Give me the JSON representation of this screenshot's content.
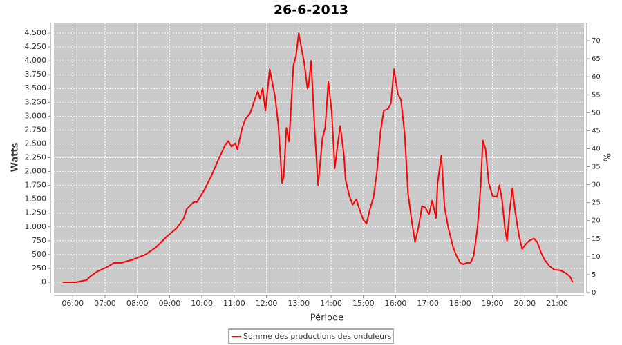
{
  "chart_data": {
    "type": "line",
    "title": "26-6-2013",
    "x_label": "Période",
    "y_label": "Watts",
    "y2_label": "%",
    "x": [
      "05:41",
      "06:06",
      "06:26",
      "06:32",
      "06:45",
      "07:04",
      "07:17",
      "07:30",
      "07:49",
      "08:15",
      "08:34",
      "08:53",
      "09:13",
      "09:26",
      "09:32",
      "09:45",
      "09:51",
      "10:04",
      "10:17",
      "10:30",
      "10:43",
      "10:49",
      "10:55",
      "11:02",
      "11:06",
      "11:15",
      "11:21",
      "11:30",
      "11:40",
      "11:44",
      "11:48",
      "11:53",
      "11:58",
      "12:06",
      "12:16",
      "12:22",
      "12:29",
      "12:32",
      "12:37",
      "12:42",
      "12:50",
      "12:55",
      "13:00",
      "13:05",
      "13:10",
      "13:16",
      "13:18",
      "13:23",
      "13:30",
      "13:36",
      "13:44",
      "13:49",
      "13:55",
      "14:01",
      "14:07",
      "14:12",
      "14:17",
      "14:24",
      "14:27",
      "14:34",
      "14:40",
      "14:47",
      "14:53",
      "15:00",
      "15:06",
      "15:12",
      "15:19",
      "15:25",
      "15:32",
      "15:38",
      "15:45",
      "15:51",
      "15:57",
      "16:04",
      "16:10",
      "16:17",
      "16:23",
      "16:30",
      "16:36",
      "16:42",
      "16:49",
      "16:55",
      "17:02",
      "17:08",
      "17:15",
      "17:18",
      "17:25",
      "17:31",
      "17:38",
      "17:47",
      "17:53",
      "18:00",
      "18:06",
      "18:12",
      "18:19",
      "18:25",
      "18:32",
      "18:38",
      "18:42",
      "18:47",
      "18:53",
      "19:00",
      "19:08",
      "19:13",
      "19:18",
      "19:23",
      "19:27",
      "19:32",
      "19:37",
      "19:42",
      "19:49",
      "19:55",
      "20:02",
      "20:08",
      "20:17",
      "20:23",
      "20:30",
      "20:36",
      "20:46",
      "20:55",
      "21:06",
      "21:16",
      "21:24",
      "21:29"
    ],
    "series": [
      {
        "name": "Somme des productions des onduleurs",
        "color": "#ff0000",
        "values": [
          0,
          0,
          40,
          100,
          190,
          275,
          350,
          350,
          400,
          500,
          625,
          810,
          975,
          1150,
          1325,
          1450,
          1450,
          1660,
          1910,
          2200,
          2475,
          2550,
          2450,
          2510,
          2400,
          2790,
          2950,
          3060,
          3350,
          3450,
          3310,
          3510,
          3100,
          3850,
          3350,
          2850,
          1790,
          1910,
          2790,
          2540,
          3910,
          4100,
          4500,
          4225,
          3975,
          3500,
          3540,
          4000,
          2660,
          1750,
          2600,
          2790,
          3625,
          3100,
          2060,
          2475,
          2825,
          2290,
          1850,
          1560,
          1400,
          1500,
          1310,
          1125,
          1060,
          1310,
          1540,
          1975,
          2725,
          3100,
          3125,
          3225,
          3850,
          3410,
          3290,
          2660,
          1600,
          1100,
          725,
          975,
          1375,
          1350,
          1225,
          1475,
          1160,
          1790,
          2290,
          1350,
          975,
          625,
          475,
          350,
          325,
          350,
          350,
          475,
          975,
          1725,
          2560,
          2410,
          1790,
          1560,
          1540,
          1750,
          1475,
          975,
          750,
          1290,
          1700,
          1290,
          850,
          600,
          690,
          750,
          790,
          725,
          540,
          415,
          290,
          225,
          215,
          165,
          100,
          0
        ]
      }
    ],
    "xlim": [
      "05:25",
      "21:50"
    ],
    "xticks": [
      "06:00",
      "07:00",
      "08:00",
      "09:00",
      "10:00",
      "11:00",
      "12:00",
      "13:00",
      "14:00",
      "15:00",
      "16:00",
      "17:00",
      "18:00",
      "19:00",
      "20:00",
      "21:00"
    ],
    "ylim": [
      -187.5,
      4687.5
    ],
    "yticks": [
      0,
      250,
      500,
      750,
      {
        "value": 1000,
        "label": "1.000"
      },
      {
        "value": 1250,
        "label": "1.250"
      },
      {
        "value": 1500,
        "label": "1.500"
      },
      {
        "value": 1750,
        "label": "1.750"
      },
      {
        "value": 2000,
        "label": "2.000"
      },
      {
        "value": 2250,
        "label": "2.250"
      },
      {
        "value": 2500,
        "label": "2.500"
      },
      {
        "value": 2750,
        "label": "2.750"
      },
      {
        "value": 3000,
        "label": "3.000"
      },
      {
        "value": 3250,
        "label": "3.250"
      },
      {
        "value": 3500,
        "label": "3.500"
      },
      {
        "value": 3750,
        "label": "3.750"
      },
      {
        "value": 4000,
        "label": "4.000"
      },
      {
        "value": 4250,
        "label": "4.250"
      },
      {
        "value": 4500,
        "label": "4.500"
      }
    ],
    "y2lim": [
      0,
      75
    ],
    "y2ticks": [
      0,
      5,
      10,
      15,
      20,
      25,
      30,
      35,
      40,
      45,
      50,
      55,
      60,
      65,
      70
    ],
    "grid": true,
    "legend": "bottom"
  }
}
